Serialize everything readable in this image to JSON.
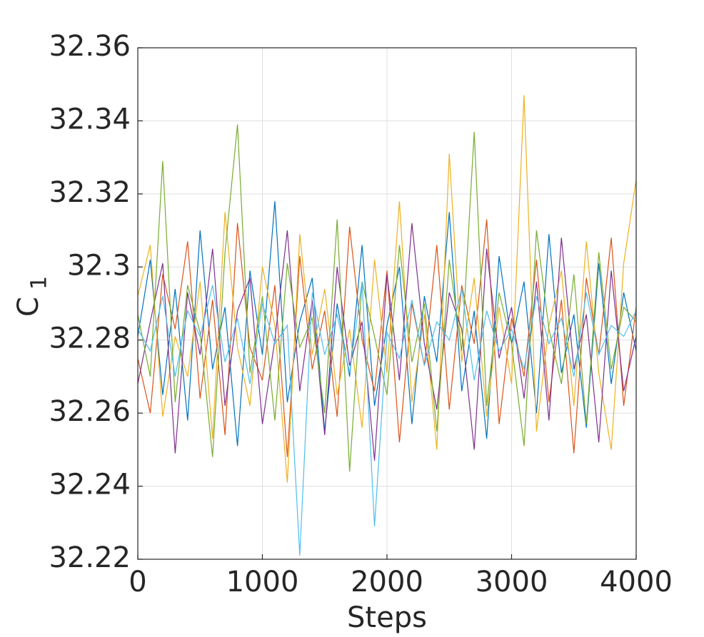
{
  "chart_data": {
    "type": "line",
    "x_label": "Steps",
    "y_label": "C",
    "y_label_subscript": "1",
    "x": [
      0,
      100,
      200,
      300,
      400,
      500,
      600,
      700,
      800,
      900,
      1000,
      1100,
      1200,
      1300,
      1400,
      1500,
      1600,
      1700,
      1800,
      1900,
      2000,
      2100,
      2200,
      2300,
      2400,
      2500,
      2600,
      2700,
      2800,
      2900,
      3000,
      3100,
      3200,
      3300,
      3400,
      3500,
      3600,
      3700,
      3800,
      3900,
      4000
    ],
    "series": [
      {
        "color": "#0072BD",
        "values": [
          32.281,
          32.302,
          32.265,
          32.294,
          32.258,
          32.31,
          32.272,
          32.289,
          32.251,
          32.299,
          32.276,
          32.318,
          32.263,
          32.285,
          32.297,
          32.255,
          32.29,
          32.27,
          32.306,
          32.262,
          32.284,
          32.3,
          32.257,
          32.292,
          32.274,
          32.315,
          32.266,
          32.288,
          32.253,
          32.303,
          32.279,
          32.296,
          32.26,
          32.309,
          32.271,
          32.287,
          32.256,
          32.301,
          32.268,
          32.293,
          32.277
        ]
      },
      {
        "color": "#D95319",
        "values": [
          32.275,
          32.26,
          32.298,
          32.283,
          32.307,
          32.264,
          32.291,
          32.254,
          32.312,
          32.278,
          32.269,
          32.295,
          32.248,
          32.303,
          32.272,
          32.288,
          32.259,
          32.311,
          32.28,
          32.266,
          32.299,
          32.252,
          32.29,
          32.273,
          32.306,
          32.261,
          32.295,
          32.279,
          32.313,
          32.257,
          32.286,
          32.27,
          32.302,
          32.263,
          32.291,
          32.249,
          32.297,
          32.276,
          32.308,
          32.262,
          32.289
        ]
      },
      {
        "color": "#EDB120",
        "values": [
          32.292,
          32.306,
          32.259,
          32.281,
          32.27,
          32.296,
          32.253,
          32.315,
          32.278,
          32.262,
          32.3,
          32.284,
          32.241,
          32.309,
          32.276,
          32.294,
          32.265,
          32.283,
          32.256,
          32.302,
          32.271,
          32.318,
          32.263,
          32.287,
          32.25,
          32.331,
          32.274,
          32.297,
          32.259,
          32.289,
          32.268,
          32.347,
          32.255,
          32.284,
          32.299,
          32.262,
          32.307,
          32.271,
          32.25,
          32.301,
          32.324
        ]
      },
      {
        "color": "#7E2F8E",
        "values": [
          32.268,
          32.285,
          32.301,
          32.249,
          32.293,
          32.276,
          32.305,
          32.262,
          32.288,
          32.297,
          32.257,
          32.28,
          32.31,
          32.266,
          32.291,
          32.254,
          32.3,
          32.273,
          32.285,
          32.247,
          32.298,
          32.269,
          32.312,
          32.279,
          32.261,
          32.293,
          32.283,
          32.25,
          32.305,
          32.275,
          32.289,
          32.264,
          32.296,
          32.258,
          32.308,
          32.272,
          32.287,
          32.252,
          32.299,
          32.266,
          32.281
        ]
      },
      {
        "color": "#77AC30",
        "values": [
          32.287,
          32.27,
          32.329,
          32.263,
          32.295,
          32.282,
          32.248,
          32.304,
          32.339,
          32.271,
          32.292,
          32.258,
          32.301,
          32.278,
          32.286,
          32.26,
          32.313,
          32.244,
          32.296,
          32.281,
          32.265,
          32.306,
          32.274,
          32.29,
          32.255,
          32.302,
          32.277,
          32.337,
          32.262,
          32.293,
          32.279,
          32.251,
          32.31,
          32.283,
          32.268,
          32.298,
          32.257,
          32.304,
          32.272,
          32.289,
          32.285
        ]
      },
      {
        "color": "#4DBEEE",
        "values": [
          32.283,
          32.277,
          32.292,
          32.27,
          32.288,
          32.281,
          32.295,
          32.274,
          32.286,
          32.268,
          32.29,
          32.279,
          32.284,
          32.221,
          32.293,
          32.276,
          32.287,
          32.271,
          32.296,
          32.229,
          32.282,
          32.275,
          32.291,
          32.273,
          32.285,
          32.28,
          32.294,
          32.269,
          32.288,
          32.277,
          32.283,
          32.272,
          32.292,
          32.279,
          32.286,
          32.27,
          32.293,
          32.276,
          32.284,
          32.281,
          32.288
        ]
      }
    ],
    "xlim": [
      0,
      4000
    ],
    "xticks": [
      0,
      1000,
      2000,
      3000,
      4000
    ],
    "ylim": [
      32.22,
      32.36
    ],
    "yticks": [
      32.22,
      32.24,
      32.26,
      32.28,
      32.3,
      32.32,
      32.34,
      32.36
    ],
    "grid": true
  }
}
